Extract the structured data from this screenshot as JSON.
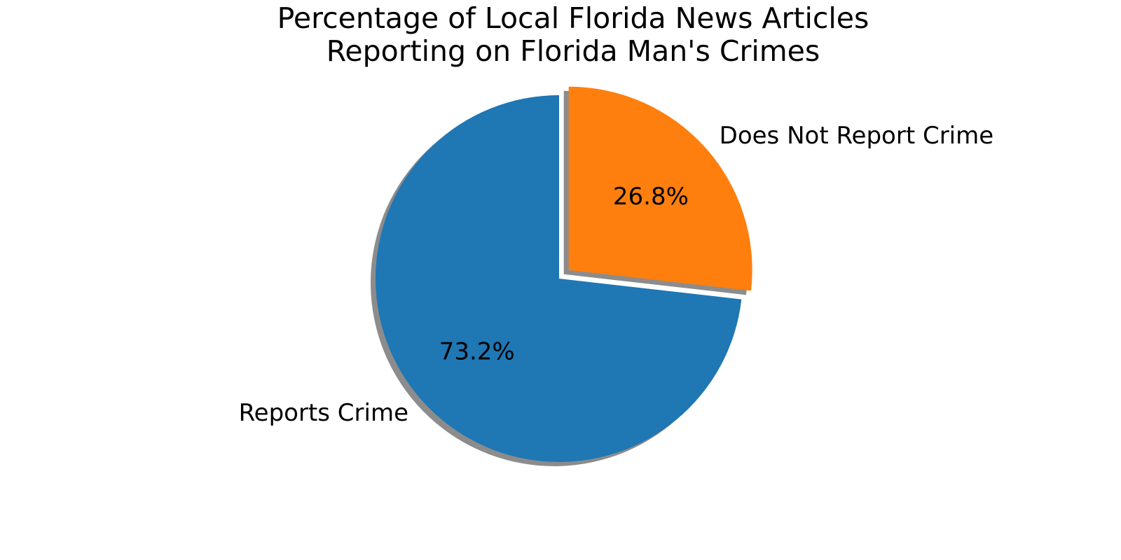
{
  "chart_data": {
    "type": "pie",
    "title": "Percentage of Local Florida News Articles\nReporting on Florida Man's Crimes",
    "title_lines": [
      "Percentage of Local Florida News Articles",
      "Reporting on Florida Man's Crimes"
    ],
    "slices": [
      {
        "label": "Reports Crime",
        "value": 73.2,
        "pct_label": "73.2%",
        "color": "#1f77b4",
        "exploded": false
      },
      {
        "label": "Does Not Report Crime",
        "value": 26.8,
        "pct_label": "26.8%",
        "color": "#ff7f0e",
        "exploded": true
      }
    ],
    "start_angle_deg": 90,
    "direction": "counterclockwise",
    "shadow": true,
    "legend": "none"
  }
}
